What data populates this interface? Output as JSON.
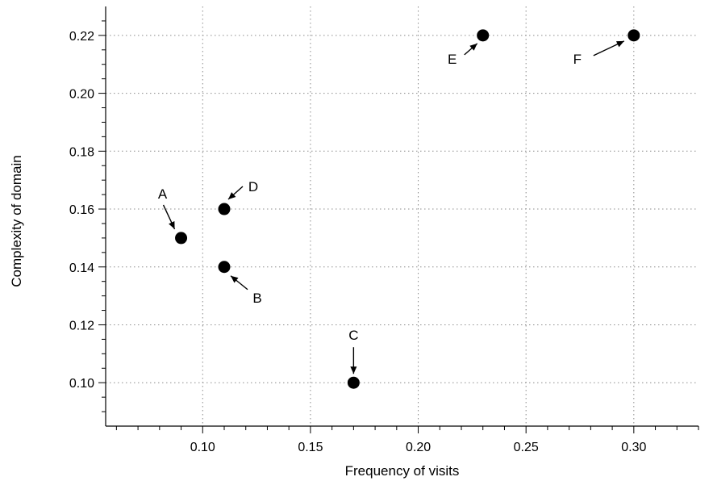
{
  "chart_data": {
    "type": "scatter",
    "title": "",
    "xlabel": "Frequency of visits",
    "ylabel": "Complexity of domain",
    "xlim": [
      0.055,
      0.33
    ],
    "ylim": [
      0.085,
      0.23
    ],
    "xticks": [
      0.1,
      0.15,
      0.2,
      0.25,
      0.3
    ],
    "xtick_labels": [
      "0.10",
      "0.15",
      "0.20",
      "0.25",
      "0.30"
    ],
    "yticks": [
      0.1,
      0.12,
      0.14,
      0.16,
      0.18,
      0.2,
      0.22
    ],
    "ytick_labels": [
      "0.10",
      "0.12",
      "0.14",
      "0.16",
      "0.18",
      "0.20",
      "0.22"
    ],
    "grid": true,
    "marker_color": "#000000",
    "points": [
      {
        "label": "A",
        "x": 0.09,
        "y": 0.15,
        "label_side": "upper-left"
      },
      {
        "label": "B",
        "x": 0.11,
        "y": 0.14,
        "label_side": "lower-right"
      },
      {
        "label": "C",
        "x": 0.17,
        "y": 0.1,
        "label_side": "above"
      },
      {
        "label": "D",
        "x": 0.11,
        "y": 0.16,
        "label_side": "upper-right"
      },
      {
        "label": "E",
        "x": 0.23,
        "y": 0.22,
        "label_side": "lower-left"
      },
      {
        "label": "F",
        "x": 0.3,
        "y": 0.22,
        "label_side": "lower-left"
      }
    ]
  }
}
